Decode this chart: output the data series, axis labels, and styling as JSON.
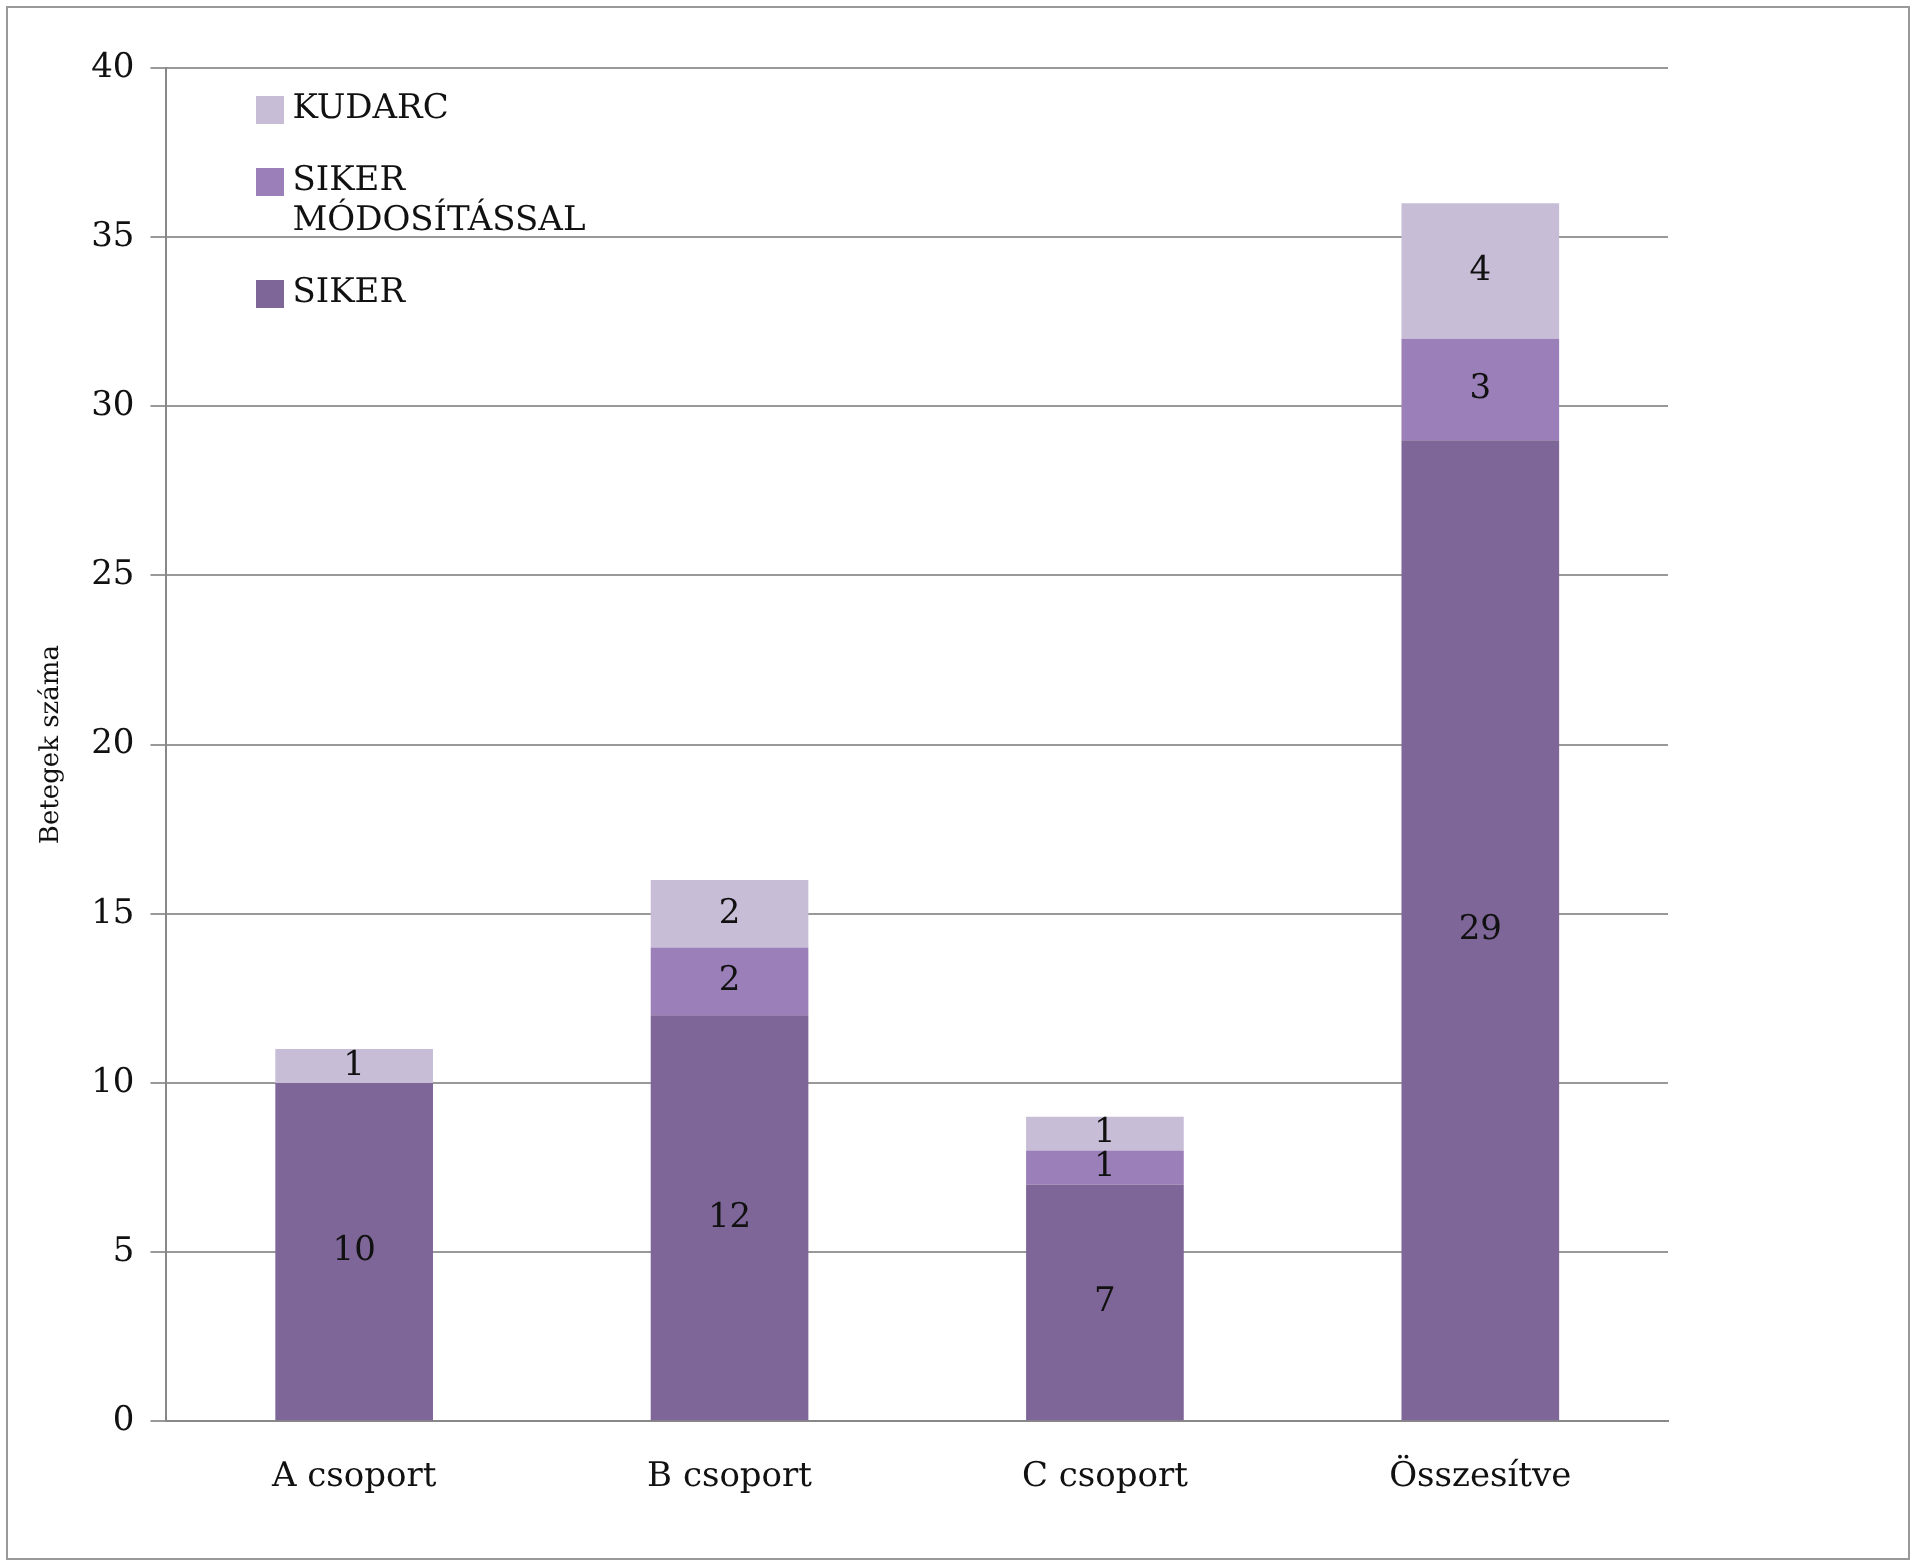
{
  "chart_data": {
    "type": "bar",
    "ylabel": "Betegek száma",
    "categories": [
      "A csoport",
      "B csoport",
      "C csoport",
      "Összesítve"
    ],
    "series": [
      {
        "name": "SIKER",
        "color": "#7f6699",
        "values": [
          10,
          12,
          7,
          29
        ]
      },
      {
        "name": "SIKER MÓDOSÍTÁSSAL",
        "color": "#9a7fb8",
        "values": [
          null,
          2,
          1,
          3
        ]
      },
      {
        "name": "KUDARC",
        "color": "#c7bdd7",
        "values": [
          1,
          2,
          1,
          4
        ]
      }
    ],
    "stacked": true,
    "ylim": [
      0,
      40
    ],
    "yticks": [
      0,
      5,
      10,
      15,
      20,
      25,
      30,
      35,
      40
    ],
    "grid": "y",
    "legend": "top left",
    "data_labels": true
  }
}
